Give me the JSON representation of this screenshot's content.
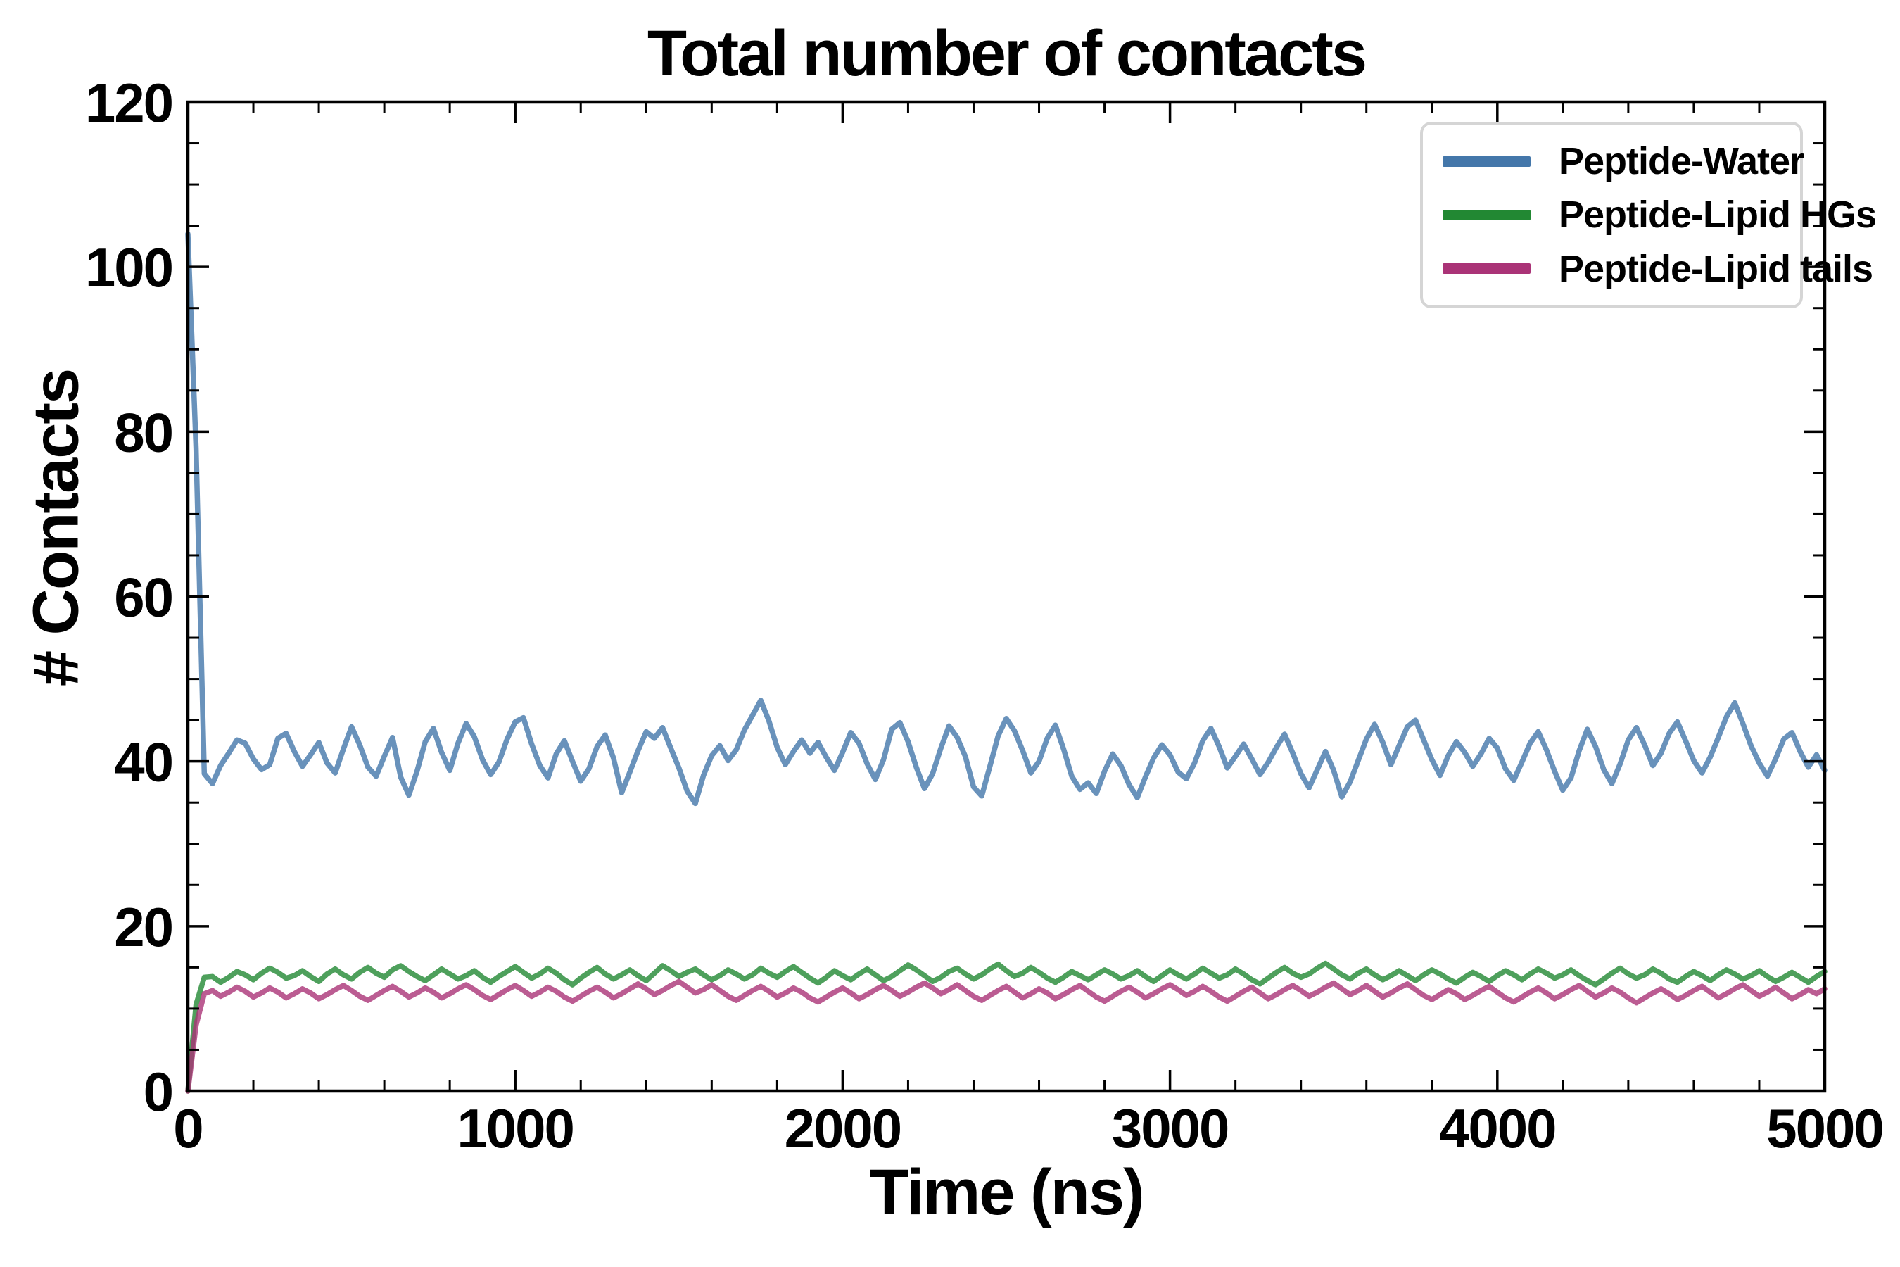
{
  "figure_title": "Total number of contacts",
  "chart_data": {
    "type": "line",
    "title": "Total number of contacts",
    "xlabel": "Time (ns)",
    "ylabel": "# Contacts",
    "xlim": [
      0,
      5000
    ],
    "ylim": [
      0,
      120
    ],
    "x_major_ticks": [
      0,
      1000,
      2000,
      3000,
      4000,
      5000
    ],
    "x_minor_step": 200,
    "y_major_ticks": [
      0,
      20,
      40,
      60,
      80,
      100,
      120
    ],
    "y_minor_step": 5,
    "grid": false,
    "legend_position": "upper right",
    "axis_color": "#000000",
    "background_color": "#ffffff",
    "legend_border_color": "#d5d5d5",
    "x_start": 0,
    "x_step": 25,
    "series": [
      {
        "name": "Peptide-Water",
        "color": "#4477AA",
        "opacity": 0.8,
        "values": [
          104,
          78,
          38.5,
          37.3,
          39.5,
          41.0,
          42.6,
          42.2,
          40.3,
          39.0,
          39.6,
          42.8,
          43.4,
          41.2,
          39.4,
          40.8,
          42.3,
          39.8,
          38.6,
          41.5,
          44.2,
          42.0,
          39.3,
          38.2,
          40.6,
          42.9,
          38.1,
          35.9,
          38.8,
          42.4,
          44.0,
          41.1,
          38.9,
          42.2,
          44.6,
          43.0,
          40.2,
          38.4,
          39.9,
          42.7,
          44.8,
          45.3,
          42.1,
          39.5,
          38.0,
          40.9,
          42.5,
          40.0,
          37.6,
          39.1,
          41.8,
          43.2,
          40.4,
          36.2,
          38.7,
          41.3,
          43.6,
          42.8,
          44.1,
          41.6,
          39.2,
          36.4,
          34.9,
          38.3,
          40.7,
          41.9,
          40.1,
          41.4,
          43.8,
          45.6,
          47.4,
          44.9,
          41.7,
          39.6,
          41.2,
          42.6,
          41.0,
          42.3,
          40.5,
          38.9,
          41.1,
          43.5,
          42.2,
          39.7,
          37.8,
          40.2,
          43.9,
          44.7,
          42.4,
          39.3,
          36.7,
          38.5,
          41.6,
          44.3,
          42.9,
          40.6,
          36.9,
          35.8,
          39.4,
          43.1,
          45.2,
          43.7,
          41.3,
          38.6,
          40.0,
          42.8,
          44.4,
          41.5,
          38.2,
          36.6,
          37.4,
          36.1,
          38.8,
          40.9,
          39.5,
          37.2,
          35.6,
          38.1,
          40.4,
          42.0,
          40.8,
          38.7,
          37.9,
          39.8,
          42.5,
          44.0,
          41.8,
          39.2,
          40.6,
          42.1,
          40.3,
          38.4,
          39.9,
          41.7,
          43.3,
          41.0,
          38.5,
          36.8,
          39.0,
          41.2,
          38.9,
          35.7,
          37.5,
          40.1,
          42.7,
          44.5,
          42.3,
          39.6,
          41.9,
          44.2,
          45.0,
          42.6,
          40.2,
          38.3,
          40.7,
          42.4,
          41.1,
          39.4,
          40.9,
          42.8,
          41.6,
          39.1,
          37.7,
          39.9,
          42.2,
          43.6,
          41.4,
          38.8,
          36.5,
          38.0,
          41.3,
          43.9,
          41.8,
          39.0,
          37.3,
          39.7,
          42.6,
          44.1,
          42.0,
          39.5,
          41.0,
          43.4,
          44.8,
          42.5,
          40.1,
          38.6,
          40.5,
          42.9,
          45.4,
          47.1,
          44.6,
          41.9,
          39.8,
          38.2,
          40.3,
          42.7,
          43.5,
          41.2,
          39.3,
          40.8,
          38.9
        ]
      },
      {
        "name": "Peptide-Lipid HGs",
        "color": "#228833",
        "opacity": 0.8,
        "values": [
          0,
          10.5,
          13.8,
          13.9,
          13.2,
          13.8,
          14.5,
          14.1,
          13.5,
          14.3,
          14.9,
          14.4,
          13.7,
          14.0,
          14.6,
          13.9,
          13.3,
          14.2,
          14.8,
          14.1,
          13.6,
          14.4,
          15.0,
          14.3,
          13.8,
          14.7,
          15.2,
          14.5,
          13.9,
          13.4,
          14.1,
          14.8,
          14.2,
          13.6,
          14.0,
          14.6,
          13.8,
          13.2,
          13.9,
          14.5,
          15.1,
          14.4,
          13.7,
          14.2,
          14.9,
          14.3,
          13.5,
          12.9,
          13.7,
          14.4,
          15.0,
          14.2,
          13.6,
          14.1,
          14.7,
          14.0,
          13.4,
          14.3,
          15.2,
          14.6,
          13.9,
          14.4,
          14.8,
          14.1,
          13.5,
          14.0,
          14.7,
          14.2,
          13.6,
          14.1,
          14.9,
          14.3,
          13.8,
          14.5,
          15.1,
          14.4,
          13.7,
          13.1,
          13.8,
          14.6,
          14.0,
          13.5,
          14.2,
          14.8,
          14.1,
          13.4,
          13.9,
          14.6,
          15.3,
          14.7,
          14.0,
          13.3,
          13.8,
          14.5,
          14.9,
          14.2,
          13.6,
          14.1,
          14.8,
          15.4,
          14.6,
          13.9,
          14.3,
          15.0,
          14.4,
          13.7,
          13.2,
          13.8,
          14.5,
          14.0,
          13.5,
          14.1,
          14.7,
          14.2,
          13.6,
          14.0,
          14.6,
          13.9,
          13.3,
          14.0,
          14.7,
          14.1,
          13.6,
          14.2,
          14.9,
          14.3,
          13.7,
          14.1,
          14.8,
          14.2,
          13.5,
          13.0,
          13.7,
          14.4,
          15.0,
          14.3,
          13.8,
          14.2,
          14.9,
          15.5,
          14.8,
          14.1,
          13.6,
          14.3,
          14.8,
          14.1,
          13.5,
          14.0,
          14.6,
          14.0,
          13.4,
          14.1,
          14.7,
          14.2,
          13.6,
          13.1,
          13.8,
          14.4,
          13.9,
          13.3,
          14.0,
          14.6,
          14.1,
          13.5,
          14.2,
          14.8,
          14.3,
          13.7,
          14.1,
          14.7,
          14.0,
          13.4,
          12.9,
          13.6,
          14.3,
          14.9,
          14.2,
          13.7,
          14.1,
          14.8,
          14.3,
          13.6,
          13.2,
          13.9,
          14.5,
          14.0,
          13.4,
          14.1,
          14.7,
          14.2,
          13.6,
          14.0,
          14.6,
          13.9,
          13.3,
          13.8,
          14.4,
          13.8,
          13.2,
          13.9,
          14.5
        ]
      },
      {
        "name": "Peptide-Lipid tails",
        "color": "#AA3377",
        "opacity": 0.8,
        "values": [
          0,
          8.0,
          11.8,
          12.2,
          11.5,
          12.0,
          12.6,
          12.1,
          11.4,
          11.9,
          12.5,
          12.0,
          11.3,
          11.8,
          12.4,
          11.9,
          11.2,
          11.7,
          12.3,
          12.8,
          12.2,
          11.5,
          11.0,
          11.6,
          12.2,
          12.7,
          12.1,
          11.4,
          11.9,
          12.5,
          12.0,
          11.3,
          11.8,
          12.4,
          12.9,
          12.3,
          11.6,
          11.1,
          11.7,
          12.3,
          12.8,
          12.2,
          11.5,
          12.0,
          12.6,
          12.1,
          11.4,
          10.9,
          11.5,
          12.1,
          12.6,
          12.0,
          11.3,
          11.8,
          12.4,
          13.0,
          12.4,
          11.7,
          12.2,
          12.8,
          13.3,
          12.6,
          11.9,
          12.3,
          12.9,
          12.2,
          11.5,
          11.0,
          11.6,
          12.2,
          12.7,
          12.1,
          11.4,
          11.9,
          12.5,
          12.0,
          11.3,
          10.8,
          11.4,
          12.0,
          12.5,
          11.9,
          11.2,
          11.7,
          12.3,
          12.8,
          12.2,
          11.5,
          12.0,
          12.6,
          13.1,
          12.5,
          11.8,
          12.3,
          12.9,
          12.2,
          11.5,
          11.0,
          11.6,
          12.2,
          12.7,
          12.0,
          11.3,
          11.8,
          12.4,
          11.9,
          11.2,
          11.7,
          12.3,
          12.8,
          12.1,
          11.4,
          10.9,
          11.5,
          12.1,
          12.6,
          12.0,
          11.3,
          11.8,
          12.4,
          12.9,
          12.3,
          11.6,
          12.1,
          12.7,
          12.1,
          11.4,
          10.9,
          11.5,
          12.1,
          12.6,
          11.9,
          11.2,
          11.7,
          12.3,
          12.8,
          12.2,
          11.5,
          12.0,
          12.6,
          13.1,
          12.4,
          11.7,
          12.2,
          12.8,
          12.1,
          11.4,
          11.9,
          12.5,
          13.0,
          12.3,
          11.6,
          11.1,
          11.7,
          12.3,
          11.8,
          11.1,
          11.6,
          12.2,
          12.7,
          12.0,
          11.3,
          10.8,
          11.4,
          12.0,
          12.5,
          11.9,
          11.2,
          11.7,
          12.3,
          12.8,
          12.1,
          11.4,
          11.9,
          12.5,
          12.0,
          11.3,
          10.7,
          11.3,
          11.9,
          12.4,
          11.8,
          11.1,
          11.6,
          12.2,
          12.7,
          12.0,
          11.3,
          11.8,
          12.4,
          12.9,
          12.2,
          11.5,
          12.0,
          12.6,
          11.9,
          11.2,
          11.7,
          12.3,
          11.8,
          12.4
        ]
      }
    ]
  }
}
